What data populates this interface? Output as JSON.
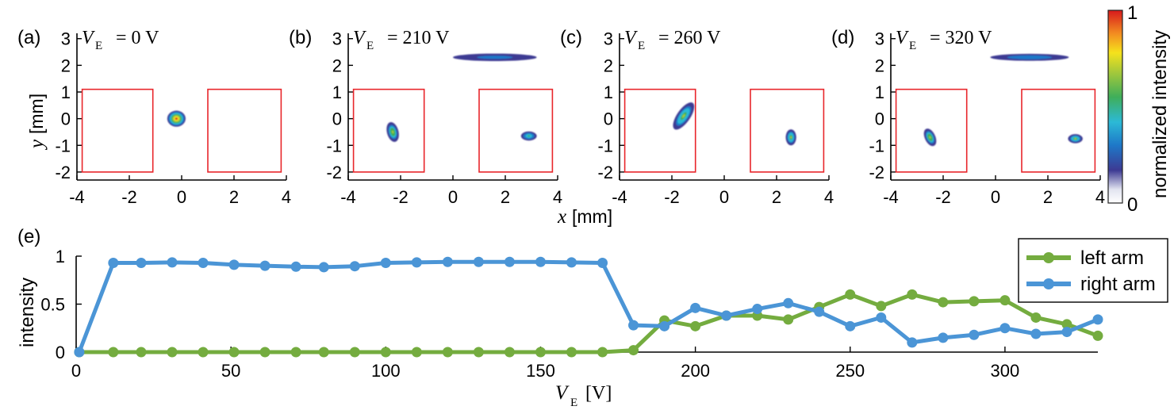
{
  "colors": {
    "left_arm": "#74ac3f",
    "right_arm": "#4b95d6",
    "roi": "#e8262b"
  },
  "icons": [
    "colormap-jet-colorbar"
  ],
  "panels": [
    {
      "label": "(a)",
      "ve_value": "= 0 V"
    },
    {
      "label": "(b)",
      "ve_value": "= 210 V"
    },
    {
      "label": "(c)",
      "ve_value": "= 260 V"
    },
    {
      "label": "(d)",
      "ve_value": "= 320 V"
    }
  ],
  "ve_symbol": "V",
  "ve_subscript": "E",
  "colorbar": {
    "label": "normalized intensity",
    "max_label": "1",
    "min_label": "0",
    "colormap": "jet"
  },
  "top_axes": {
    "xlabel_var": "x",
    "xlabel_unit": "[mm]",
    "ylabel_var": "y",
    "ylabel_unit": "[mm]",
    "xticks": [
      "-4",
      "-2",
      "0",
      "2",
      "4"
    ],
    "yticks": [
      "3",
      "2",
      "1",
      "0",
      "-1",
      "-2"
    ]
  },
  "bottom_panel_label": "(e)",
  "chart_data": [
    {
      "type": "heatmap",
      "panel": "(a)",
      "title": "V_E = 0 V",
      "xlim": [
        -4,
        4
      ],
      "ylim": [
        -2.3,
        3.2
      ],
      "roi_boxes_mm": [
        [
          -3.8,
          -1.1,
          -2.0,
          1.1
        ],
        [
          1.0,
          3.8,
          -2.0,
          1.1
        ]
      ],
      "spots": [
        {
          "x": -0.2,
          "y": 0.0,
          "rx": 0.35,
          "ry": 0.3,
          "angle": 0,
          "peak": 1.0
        }
      ]
    },
    {
      "type": "heatmap",
      "panel": "(b)",
      "title": "V_E = 210 V",
      "xlim": [
        -4,
        4
      ],
      "ylim": [
        -2.3,
        3.2
      ],
      "roi_boxes_mm": [
        [
          -3.8,
          -1.1,
          -2.0,
          1.1
        ],
        [
          1.0,
          3.8,
          -2.0,
          1.1
        ]
      ],
      "spots": [
        {
          "x": 1.6,
          "y": 2.3,
          "rx": 1.6,
          "ry": 0.14,
          "angle": 0,
          "peak": 0.35
        },
        {
          "x": -2.3,
          "y": -0.5,
          "rx": 0.22,
          "ry": 0.38,
          "angle": -15,
          "peak": 0.75
        },
        {
          "x": 2.9,
          "y": -0.65,
          "rx": 0.3,
          "ry": 0.17,
          "angle": 0,
          "peak": 0.6
        }
      ]
    },
    {
      "type": "heatmap",
      "panel": "(c)",
      "title": "V_E = 260 V",
      "xlim": [
        -4,
        4
      ],
      "ylim": [
        -2.3,
        3.2
      ],
      "roi_boxes_mm": [
        [
          -3.8,
          -1.1,
          -2.0,
          1.1
        ],
        [
          1.0,
          3.8,
          -2.0,
          1.1
        ]
      ],
      "spots": [
        {
          "x": -1.55,
          "y": 0.1,
          "rx": 0.25,
          "ry": 0.6,
          "angle": 35,
          "peak": 0.7
        },
        {
          "x": 2.55,
          "y": -0.7,
          "rx": 0.2,
          "ry": 0.3,
          "angle": 0,
          "peak": 0.7
        }
      ]
    },
    {
      "type": "heatmap",
      "panel": "(d)",
      "title": "V_E = 320 V",
      "xlim": [
        -4,
        4
      ],
      "ylim": [
        -2.3,
        3.2
      ],
      "roi_boxes_mm": [
        [
          -3.8,
          -1.1,
          -2.0,
          1.1
        ],
        [
          1.0,
          3.8,
          -2.0,
          1.1
        ]
      ],
      "spots": [
        {
          "x": 1.3,
          "y": 2.3,
          "rx": 1.5,
          "ry": 0.13,
          "angle": 0,
          "peak": 0.4
        },
        {
          "x": -2.5,
          "y": -0.7,
          "rx": 0.2,
          "ry": 0.35,
          "angle": -25,
          "peak": 0.75
        },
        {
          "x": 3.05,
          "y": -0.75,
          "rx": 0.28,
          "ry": 0.17,
          "angle": 0,
          "peak": 0.7
        }
      ]
    },
    {
      "type": "line",
      "panel": "(e)",
      "xlabel_var": "V",
      "xlabel_sub": "E",
      "xlabel_unit": "[V]",
      "ylabel": "intensity",
      "xlim": [
        0,
        330
      ],
      "ylim": [
        0,
        1
      ],
      "xticks": [
        0,
        50,
        100,
        150,
        200,
        250,
        300
      ],
      "yticks": [
        {
          "value": 0,
          "label": "0"
        },
        {
          "value": 0.5,
          "label": "0.5"
        },
        {
          "value": 1,
          "label": "1"
        }
      ],
      "legend_position": "top-right",
      "x": [
        1,
        12,
        21,
        31,
        41,
        51,
        61,
        71,
        80,
        90,
        100,
        110,
        120,
        130,
        140,
        150,
        160,
        170,
        180,
        190,
        200,
        210,
        220,
        230,
        240,
        250,
        260,
        270,
        280,
        290,
        300,
        310,
        320,
        330
      ],
      "series": [
        {
          "name": "left arm",
          "color": "#74ac3f",
          "values": [
            0,
            0,
            0,
            0,
            0,
            0,
            0,
            0,
            0,
            0,
            0,
            0,
            0,
            0,
            0,
            0,
            0,
            0,
            0.02,
            0.33,
            0.27,
            0.38,
            0.38,
            0.34,
            0.47,
            0.6,
            0.48,
            0.6,
            0.52,
            0.53,
            0.54,
            0.36,
            0.29,
            0.17
          ]
        },
        {
          "name": "right arm",
          "color": "#4b95d6",
          "values": [
            0,
            0.93,
            0.93,
            0.935,
            0.93,
            0.91,
            0.9,
            0.89,
            0.885,
            0.895,
            0.93,
            0.935,
            0.94,
            0.94,
            0.94,
            0.94,
            0.935,
            0.93,
            0.28,
            0.27,
            0.46,
            0.38,
            0.45,
            0.51,
            0.42,
            0.27,
            0.36,
            0.1,
            0.15,
            0.18,
            0.25,
            0.19,
            0.21,
            0.34
          ]
        }
      ]
    }
  ]
}
